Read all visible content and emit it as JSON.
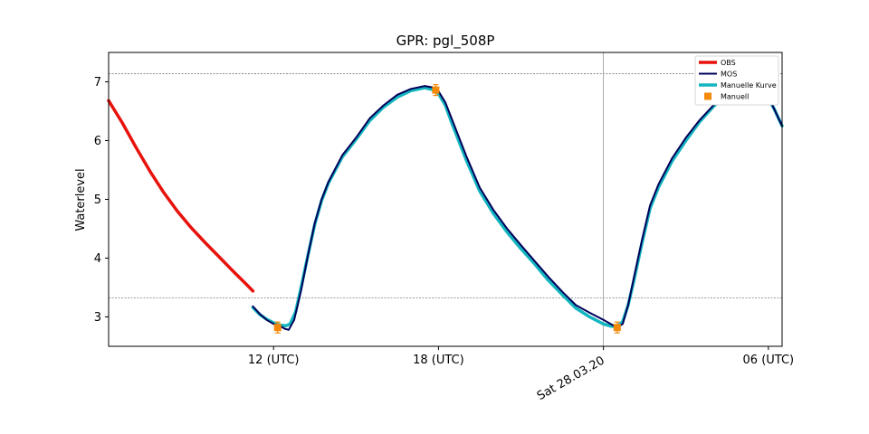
{
  "chart_data": {
    "type": "line",
    "title": "GPR: pgl_508P",
    "ylabel": "Waterlevel",
    "xlabel": "",
    "xlim": [
      6.0,
      30.5
    ],
    "ylim": [
      2.5,
      7.5
    ],
    "yticks": [
      3,
      4,
      5,
      6,
      7
    ],
    "xticks": [
      {
        "x": 12,
        "label": "12 (UTC)",
        "rotated": false
      },
      {
        "x": 18,
        "label": "18 (UTC)",
        "rotated": false
      },
      {
        "x": 24,
        "label": "Sat 28.03.20",
        "rotated": true
      },
      {
        "x": 30,
        "label": "06 (UTC)",
        "rotated": false
      }
    ],
    "hlines": [
      7.14,
      3.32
    ],
    "vline": 24,
    "legend": {
      "position": "top-right",
      "entries": [
        {
          "label": "OBS",
          "color": "#e8120c",
          "kind": "line"
        },
        {
          "label": "MOS",
          "color": "#00005a",
          "kind": "line"
        },
        {
          "label": "Manuelle Kurve",
          "color": "#13b5bf",
          "kind": "line"
        },
        {
          "label": "Manuell",
          "color": "#f58a0a",
          "kind": "marker"
        }
      ]
    },
    "series": [
      {
        "name": "OBS",
        "color": "#e8120c",
        "x": [
          6.0,
          6.5,
          7.0,
          7.5,
          8.0,
          8.5,
          9.0,
          9.5,
          10.0,
          10.5,
          11.0,
          11.25
        ],
        "y": [
          6.68,
          6.3,
          5.88,
          5.48,
          5.12,
          4.8,
          4.52,
          4.27,
          4.03,
          3.79,
          3.56,
          3.44
        ]
      },
      {
        "name": "MOS",
        "color": "#00005a",
        "x": [
          11.25,
          11.5,
          11.75,
          12.0,
          12.25,
          12.4,
          12.55,
          12.75,
          13.0,
          13.25,
          13.5,
          13.75,
          14.0,
          14.5,
          15.0,
          15.5,
          16.0,
          16.5,
          17.0,
          17.5,
          17.85,
          18.0,
          18.25,
          18.5,
          19.0,
          19.5,
          20.0,
          20.5,
          21.0,
          21.5,
          22.0,
          22.5,
          23.0,
          23.5,
          24.0,
          24.3,
          24.5,
          24.7,
          24.9,
          25.1,
          25.4,
          25.7,
          26.0,
          26.5,
          27.0,
          27.5,
          28.0,
          28.5,
          29.0,
          29.5,
          29.9,
          30.2,
          30.5
        ],
        "y": [
          3.18,
          3.05,
          2.95,
          2.88,
          2.84,
          2.8,
          2.78,
          2.95,
          3.45,
          4.05,
          4.6,
          5.0,
          5.3,
          5.75,
          6.05,
          6.38,
          6.6,
          6.78,
          6.88,
          6.93,
          6.9,
          6.84,
          6.65,
          6.35,
          5.75,
          5.2,
          4.82,
          4.5,
          4.22,
          3.95,
          3.68,
          3.43,
          3.2,
          3.07,
          2.95,
          2.87,
          2.82,
          2.88,
          3.2,
          3.65,
          4.3,
          4.9,
          5.25,
          5.7,
          6.05,
          6.35,
          6.6,
          6.8,
          6.95,
          6.93,
          6.82,
          6.55,
          6.25
        ]
      },
      {
        "name": "Manuelle Kurve",
        "color": "#13b5bf",
        "x": [
          11.25,
          11.5,
          11.75,
          12.0,
          12.25,
          12.45,
          12.6,
          12.8,
          13.0,
          13.25,
          13.5,
          13.75,
          14.0,
          14.5,
          15.0,
          15.5,
          16.0,
          16.5,
          17.0,
          17.5,
          17.85,
          18.0,
          18.25,
          18.5,
          19.0,
          19.5,
          20.0,
          20.5,
          21.0,
          21.5,
          22.0,
          22.5,
          23.0,
          23.5,
          24.0,
          24.3,
          24.5,
          24.7,
          24.9,
          25.1,
          25.4,
          25.7,
          26.0,
          26.5,
          27.0,
          27.5,
          28.0,
          28.5,
          29.0,
          29.5,
          29.9,
          30.2,
          30.5
        ],
        "y": [
          3.16,
          3.04,
          2.96,
          2.9,
          2.86,
          2.85,
          2.88,
          3.08,
          3.5,
          4.05,
          4.58,
          4.98,
          5.28,
          5.72,
          6.02,
          6.34,
          6.57,
          6.74,
          6.85,
          6.9,
          6.86,
          6.8,
          6.6,
          6.28,
          5.68,
          5.14,
          4.76,
          4.44,
          4.16,
          3.9,
          3.62,
          3.38,
          3.15,
          3.0,
          2.88,
          2.84,
          2.84,
          2.92,
          3.2,
          3.6,
          4.25,
          4.85,
          5.2,
          5.65,
          6.0,
          6.32,
          6.58,
          6.8,
          6.92,
          6.92,
          6.8,
          6.55,
          6.25
        ]
      }
    ],
    "manual_points": {
      "name": "Manuell",
      "color": "#f58a0a",
      "x": [
        12.15,
        17.9,
        24.5,
        29.95
      ],
      "y": [
        2.82,
        6.86,
        2.82,
        6.95
      ]
    }
  }
}
